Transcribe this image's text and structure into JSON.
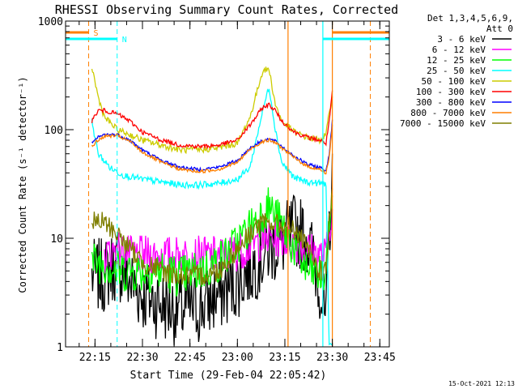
{
  "chart_data": {
    "type": "line",
    "title": "RHESSI Observing Summary Count Rates, Corrected",
    "xlabel": "Start Time (29-Feb-04 22:05:42)",
    "ylabel": "Corrected Count Rate (s⁻¹ detector⁻¹)",
    "yscale": "log",
    "ylim": [
      1,
      1000
    ],
    "xlim": [
      "22:05:42",
      "23:48:00"
    ],
    "x_ticks": [
      "22:15",
      "22:30",
      "22:45",
      "23:00",
      "23:15",
      "23:30",
      "23:45"
    ],
    "y_ticks": [
      "1",
      "10",
      "100",
      "1000"
    ],
    "legend_header": [
      "Det 1,3,4,5,6,9,",
      "Att 0"
    ],
    "legend_position": "right",
    "series": [
      {
        "name": "3 - 6 keV",
        "color": "#000000",
        "x": [
          "22:14",
          "22:18",
          "22:22",
          "22:26",
          "22:30",
          "22:36",
          "22:42",
          "22:48",
          "22:54",
          "23:00",
          "23:06",
          "23:10",
          "23:14",
          "23:18",
          "23:22",
          "23:26",
          "23:28",
          "23:29",
          "23:30"
        ],
        "y": [
          4.5,
          4.5,
          6,
          4,
          3,
          2.5,
          2.2,
          2.3,
          3,
          4,
          6,
          8,
          9,
          12,
          10,
          4,
          1.5,
          12,
          30
        ]
      },
      {
        "name": "6 - 12 keV",
        "color": "#ff00ff",
        "x": [
          "22:18",
          "22:22",
          "22:26",
          "22:30",
          "22:36",
          "22:42",
          "22:48",
          "22:54",
          "23:00",
          "23:06",
          "23:10",
          "23:14",
          "23:18",
          "23:22",
          "23:26",
          "23:28",
          "23:29",
          "23:30"
        ],
        "y": [
          7,
          8,
          7,
          7,
          7,
          7,
          7,
          7,
          7.5,
          9,
          10,
          10,
          9,
          8,
          7,
          7,
          12,
          20
        ]
      },
      {
        "name": "12 - 25 keV",
        "color": "#00ff00",
        "x": [
          "22:14",
          "22:18",
          "22:22",
          "22:26",
          "22:30",
          "22:36",
          "22:42",
          "22:48",
          "22:54",
          "23:00",
          "23:06",
          "23:10",
          "23:14",
          "23:18",
          "23:22",
          "23:26",
          "23:28",
          "23:29",
          "23:30"
        ],
        "y": [
          6,
          6,
          5,
          5,
          5,
          5,
          4.5,
          5,
          6,
          9,
          15,
          20,
          13,
          8,
          5,
          4.5,
          4.5,
          12,
          30
        ]
      },
      {
        "name": "25 - 50 keV",
        "color": "#00ffff",
        "x": [
          "22:14",
          "22:16",
          "22:20",
          "22:24",
          "22:30",
          "22:36",
          "22:42",
          "22:48",
          "22:54",
          "23:00",
          "23:04",
          "23:08",
          "23:10",
          "23:12",
          "23:14",
          "23:18",
          "23:22",
          "23:26",
          "23:28",
          "23:29",
          "23:30"
        ],
        "y": [
          120,
          60,
          44,
          38,
          35,
          33,
          31,
          31,
          32,
          35,
          45,
          150,
          250,
          100,
          50,
          36,
          33,
          32,
          32,
          1,
          1
        ]
      },
      {
        "name": "50 - 100 keV",
        "color": "#cccc00",
        "x": [
          "22:14",
          "22:16",
          "22:18",
          "22:22",
          "22:26",
          "22:30",
          "22:36",
          "22:42",
          "22:48",
          "22:54",
          "23:00",
          "23:04",
          "23:08",
          "23:10",
          "23:12",
          "23:14",
          "23:18",
          "23:22",
          "23:26",
          "23:28",
          "23:29",
          "23:30"
        ],
        "y": [
          380,
          200,
          130,
          100,
          90,
          80,
          72,
          65,
          65,
          68,
          75,
          130,
          350,
          360,
          170,
          120,
          95,
          85,
          80,
          90,
          140,
          200
        ]
      },
      {
        "name": "100 - 300 keV",
        "color": "#ff0000",
        "x": [
          "22:14",
          "22:16",
          "22:18",
          "22:22",
          "22:26",
          "22:30",
          "22:36",
          "22:42",
          "22:48",
          "22:54",
          "23:00",
          "23:04",
          "23:08",
          "23:10",
          "23:12",
          "23:14",
          "23:18",
          "23:22",
          "23:26",
          "23:28",
          "23:29",
          "23:30"
        ],
        "y": [
          120,
          150,
          150,
          140,
          120,
          95,
          80,
          72,
          70,
          72,
          80,
          110,
          160,
          170,
          150,
          120,
          95,
          85,
          80,
          75,
          120,
          220
        ]
      },
      {
        "name": "300 - 800 keV",
        "color": "#0000ff",
        "x": [
          "22:14",
          "22:16",
          "22:18",
          "22:22",
          "22:26",
          "22:30",
          "22:36",
          "22:42",
          "22:48",
          "22:54",
          "23:00",
          "23:04",
          "23:08",
          "23:10",
          "23:12",
          "23:14",
          "23:18",
          "23:22",
          "23:26",
          "23:28",
          "23:29",
          "23:30"
        ],
        "y": [
          75,
          85,
          90,
          90,
          80,
          65,
          52,
          45,
          43,
          45,
          52,
          68,
          80,
          82,
          78,
          70,
          57,
          48,
          45,
          42,
          60,
          120
        ]
      },
      {
        "name": "800 - 7000 keV",
        "color": "#ff7f00",
        "x": [
          "22:14",
          "22:16",
          "22:18",
          "22:22",
          "22:26",
          "22:30",
          "22:36",
          "22:42",
          "22:48",
          "22:54",
          "23:00",
          "23:04",
          "23:08",
          "23:10",
          "23:12",
          "23:14",
          "23:18",
          "23:22",
          "23:26",
          "23:28",
          "23:29",
          "23:30"
        ],
        "y": [
          70,
          80,
          87,
          88,
          78,
          62,
          50,
          43,
          41,
          43,
          50,
          66,
          78,
          80,
          76,
          68,
          55,
          46,
          43,
          40,
          55,
          110
        ]
      },
      {
        "name": "7000 - 15000 keV",
        "color": "#7f7f00",
        "x": [
          "22:14",
          "22:18",
          "22:22",
          "22:26",
          "22:30",
          "22:36",
          "22:42",
          "22:48",
          "22:54",
          "23:00",
          "23:06",
          "23:10",
          "23:14",
          "23:18",
          "23:22",
          "23:26",
          "23:28",
          "23:29",
          "23:30"
        ],
        "y": [
          14,
          14,
          11,
          8,
          6,
          5,
          4.5,
          4.5,
          5,
          8,
          13,
          14,
          13,
          12,
          8,
          5,
          5,
          15,
          25
        ]
      }
    ],
    "markers": [
      {
        "label": "S",
        "color": "#ff7f00",
        "x_start": "22:05:42",
        "x_end": "22:13"
      },
      {
        "label": "N",
        "color": "#00ffff",
        "x_start": "22:05:42",
        "x_end": "22:22"
      },
      {
        "label": "",
        "color": "#ff7f00",
        "x_start": "23:30",
        "x_end": "23:48"
      },
      {
        "label": "",
        "color": "#00ffff",
        "x_start": "23:27",
        "x_end": "23:48"
      }
    ],
    "dashed_lines": [
      {
        "x": "22:13",
        "color": "#ff7f00"
      },
      {
        "x": "22:22",
        "color": "#00ffff"
      },
      {
        "x": "23:42",
        "color": "#ff7f00"
      }
    ],
    "solid_lines": [
      {
        "x": "23:16",
        "color": "#ff7f00"
      },
      {
        "x": "23:27",
        "color": "#00ffff"
      },
      {
        "x": "23:30",
        "color": "#ff7f00"
      }
    ],
    "grid": false
  },
  "footer_timestamp": "15-Oct-2021 12:13"
}
